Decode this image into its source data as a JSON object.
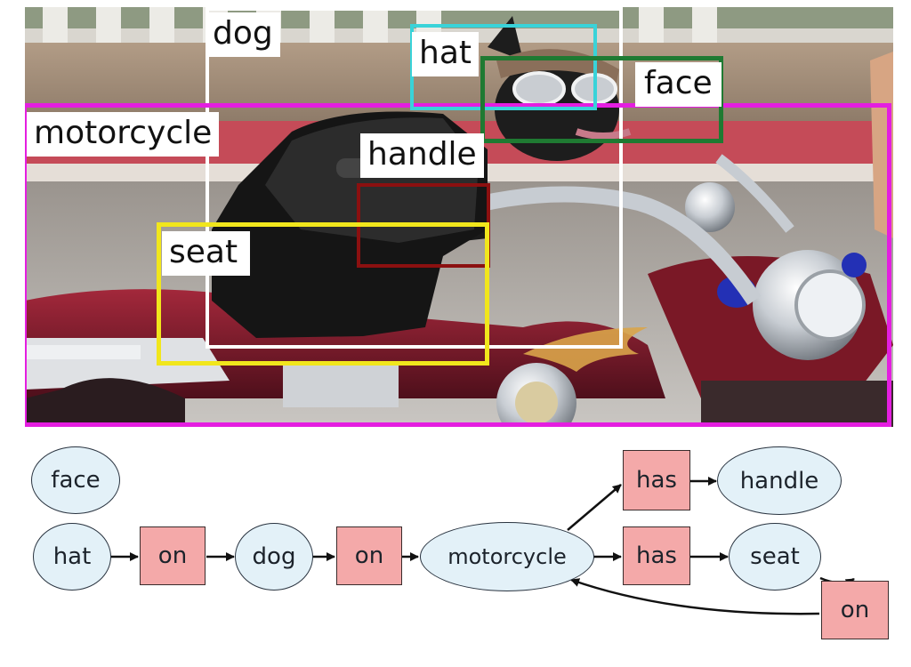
{
  "image": {
    "regions": [
      {
        "key": "dog",
        "label": "dog",
        "color": "#ffffff"
      },
      {
        "key": "hat",
        "label": "hat",
        "color": "#39d3d9"
      },
      {
        "key": "face",
        "label": "face",
        "color": "#1f7a32"
      },
      {
        "key": "motorcycle",
        "label": "motorcycle",
        "color": "#e41ee0"
      },
      {
        "key": "handle",
        "label": "handle",
        "color": "#8b1010"
      },
      {
        "key": "seat",
        "label": "seat",
        "color": "#f1e61c"
      }
    ]
  },
  "graph": {
    "objects": {
      "face": "face",
      "hat": "hat",
      "dog": "dog",
      "motorcycle": "motorcycle",
      "handle": "handle",
      "seat": "seat"
    },
    "relations": {
      "hat_on_dog": "on",
      "dog_on_motorcycle": "on",
      "motorcycle_has_handle": "has",
      "motorcycle_has_seat": "has",
      "seat_on_motorcycle": "on"
    },
    "colors": {
      "object_fill": "#e3f1f8",
      "relation_fill": "#f4a9a9"
    }
  }
}
